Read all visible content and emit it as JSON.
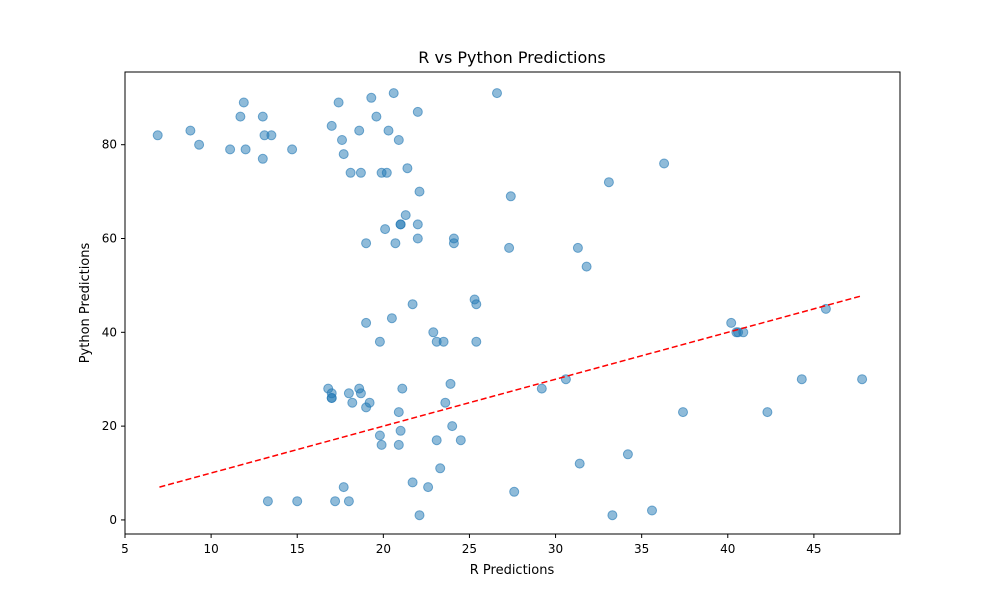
{
  "chart_data": {
    "type": "scatter",
    "title": "R vs Python Predictions",
    "xlabel": "R Predictions",
    "ylabel": "Python Predictions",
    "xlim": [
      5,
      50
    ],
    "ylim": [
      -3,
      95.5
    ],
    "xticks": [
      5,
      10,
      15,
      20,
      25,
      30,
      35,
      40,
      45
    ],
    "yticks": [
      0,
      20,
      40,
      60,
      80
    ],
    "grid": false,
    "colors": {
      "points": "#1f77b4",
      "reference_line": "#ff0000"
    },
    "reference_line": {
      "style": "dashed",
      "x": [
        7,
        47.8
      ],
      "y": [
        7,
        47.8
      ]
    },
    "points": [
      [
        6.9,
        82
      ],
      [
        8.8,
        83
      ],
      [
        9.3,
        80
      ],
      [
        11.1,
        79
      ],
      [
        11.7,
        86
      ],
      [
        11.9,
        89
      ],
      [
        12.0,
        79
      ],
      [
        13.0,
        77
      ],
      [
        13.0,
        86
      ],
      [
        13.1,
        82
      ],
      [
        13.5,
        82
      ],
      [
        14.7,
        79
      ],
      [
        17.0,
        84
      ],
      [
        17.4,
        89
      ],
      [
        17.6,
        81
      ],
      [
        17.7,
        78
      ],
      [
        18.1,
        74
      ],
      [
        18.6,
        83
      ],
      [
        18.7,
        74
      ],
      [
        19.3,
        90
      ],
      [
        19.6,
        86
      ],
      [
        19.9,
        74
      ],
      [
        20.2,
        74
      ],
      [
        20.3,
        83
      ],
      [
        20.6,
        91
      ],
      [
        20.9,
        81
      ],
      [
        21.4,
        75
      ],
      [
        22.0,
        87
      ],
      [
        22.1,
        70
      ],
      [
        26.6,
        91
      ],
      [
        27.4,
        69
      ],
      [
        33.1,
        72
      ],
      [
        36.3,
        76
      ],
      [
        19.0,
        59
      ],
      [
        20.1,
        62
      ],
      [
        20.7,
        59
      ],
      [
        21.0,
        63
      ],
      [
        21.0,
        63
      ],
      [
        21.3,
        65
      ],
      [
        22.0,
        60
      ],
      [
        22.0,
        63
      ],
      [
        24.1,
        60
      ],
      [
        24.1,
        59
      ],
      [
        27.3,
        58
      ],
      [
        31.3,
        58
      ],
      [
        31.8,
        54
      ],
      [
        19.0,
        42
      ],
      [
        19.8,
        38
      ],
      [
        20.5,
        43
      ],
      [
        21.7,
        46
      ],
      [
        22.9,
        40
      ],
      [
        23.1,
        38
      ],
      [
        23.5,
        38
      ],
      [
        25.3,
        47
      ],
      [
        25.4,
        46
      ],
      [
        25.4,
        38
      ],
      [
        40.2,
        42
      ],
      [
        40.5,
        40
      ],
      [
        40.6,
        40
      ],
      [
        40.9,
        40
      ],
      [
        45.7,
        45
      ],
      [
        16.8,
        28
      ],
      [
        17.0,
        27
      ],
      [
        17.0,
        26
      ],
      [
        17.0,
        26
      ],
      [
        18.0,
        27
      ],
      [
        18.2,
        25
      ],
      [
        18.6,
        28
      ],
      [
        18.7,
        27
      ],
      [
        19.0,
        24
      ],
      [
        19.2,
        25
      ],
      [
        21.1,
        28
      ],
      [
        20.9,
        23
      ],
      [
        23.6,
        25
      ],
      [
        23.9,
        29
      ],
      [
        29.2,
        28
      ],
      [
        30.6,
        30
      ],
      [
        37.4,
        23
      ],
      [
        42.3,
        23
      ],
      [
        44.3,
        30
      ],
      [
        47.8,
        30
      ],
      [
        19.8,
        18
      ],
      [
        19.9,
        16
      ],
      [
        21.0,
        19
      ],
      [
        20.9,
        16
      ],
      [
        23.1,
        17
      ],
      [
        24.0,
        20
      ],
      [
        24.5,
        17
      ],
      [
        23.3,
        11
      ],
      [
        31.4,
        12
      ],
      [
        34.2,
        14
      ],
      [
        13.3,
        4
      ],
      [
        15.0,
        4
      ],
      [
        17.2,
        4
      ],
      [
        17.7,
        7
      ],
      [
        18.0,
        4
      ],
      [
        21.7,
        8
      ],
      [
        22.6,
        7
      ],
      [
        22.1,
        1
      ],
      [
        27.6,
        6
      ],
      [
        33.3,
        1
      ],
      [
        35.6,
        2
      ]
    ]
  }
}
